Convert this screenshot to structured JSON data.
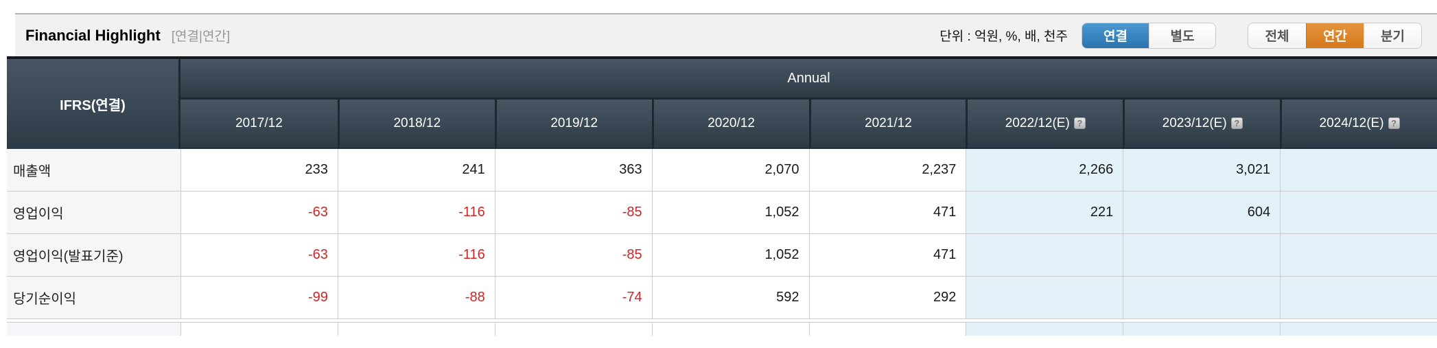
{
  "toolbar": {
    "title": "Financial Highlight",
    "view_tag": "[연결|연간]",
    "unit_label": "단위 : 억원, %, 배, 천주",
    "toggles": [
      {
        "name": "statement-type",
        "accent": "blue",
        "active": "연결",
        "options": [
          {
            "label": "연결",
            "name": "consolidated"
          },
          {
            "label": "별도",
            "name": "separate"
          }
        ]
      },
      {
        "name": "period",
        "accent": "orange",
        "active": "연간",
        "options": [
          {
            "label": "전체",
            "name": "all"
          },
          {
            "label": "연간",
            "name": "annual"
          },
          {
            "label": "분기",
            "name": "quarterly"
          }
        ]
      }
    ]
  },
  "table": {
    "corner_label": "IFRS(연결)",
    "group_header": "Annual",
    "columns": [
      {
        "label": "2017/12",
        "estimate": false
      },
      {
        "label": "2018/12",
        "estimate": false
      },
      {
        "label": "2019/12",
        "estimate": false
      },
      {
        "label": "2020/12",
        "estimate": false
      },
      {
        "label": "2021/12",
        "estimate": false
      },
      {
        "label": "2022/12(E)",
        "estimate": true
      },
      {
        "label": "2023/12(E)",
        "estimate": true
      },
      {
        "label": "2024/12(E)",
        "estimate": true
      }
    ],
    "rows": [
      {
        "label": "매출액",
        "values": [
          "233",
          "241",
          "363",
          "2,070",
          "2,237",
          "2,266",
          "3,021",
          ""
        ]
      },
      {
        "label": "영업이익",
        "values": [
          "-63",
          "-116",
          "-85",
          "1,052",
          "471",
          "221",
          "604",
          ""
        ]
      },
      {
        "label": "영업이익(발표기준)",
        "values": [
          "-63",
          "-116",
          "-85",
          "1,052",
          "471",
          "",
          "",
          ""
        ]
      },
      {
        "label": "당기순이익",
        "values": [
          "-99",
          "-88",
          "-74",
          "592",
          "292",
          "",
          "",
          ""
        ]
      }
    ]
  },
  "icons": {
    "help": "?"
  },
  "colors": {
    "accent_blue": "#2e7cb8",
    "accent_orange": "#dd831f",
    "negative_red": "#d02525",
    "estimate_bg": "#e3f1f8",
    "header_dark": "#2d3b47"
  }
}
